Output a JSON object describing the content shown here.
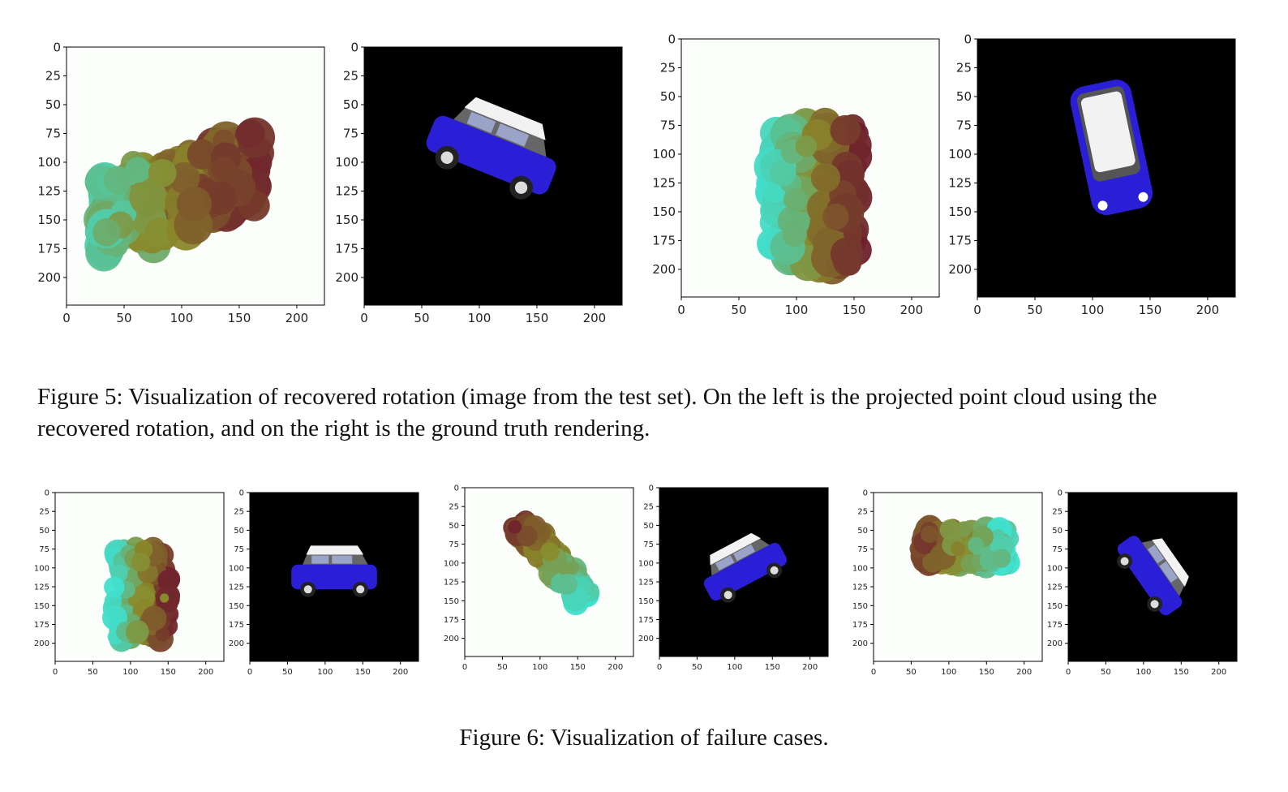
{
  "figure5": {
    "caption": "Figure 5: Visualization of recovered rotation (image from the test set). On the left is the projected point cloud using the recovered rotation, and on the right is the ground truth rendering."
  },
  "figure6": {
    "caption": "Figure 6: Visualization of failure cases."
  },
  "axes": {
    "y_ticks": [
      "0",
      "25",
      "50",
      "75",
      "100",
      "125",
      "150",
      "175",
      "200"
    ],
    "x_ticks": [
      "0",
      "50",
      "100",
      "150",
      "200"
    ]
  },
  "colors": {
    "cloud_cyan": "#3fe0cf",
    "cloud_olive": "#8a8a2a",
    "cloud_maroon": "#6e1d2c",
    "car_body": "#2a1fd6",
    "car_roof": "#f2f2f2",
    "render_bg": "#000000"
  },
  "panels": [
    {
      "kind": "cloud",
      "figure": "5",
      "orientation": "diagonal-left"
    },
    {
      "kind": "render",
      "figure": "5",
      "view": "three-quarter-left"
    },
    {
      "kind": "cloud",
      "figure": "5",
      "orientation": "vertical"
    },
    {
      "kind": "render",
      "figure": "5",
      "view": "top-down"
    },
    {
      "kind": "cloud",
      "figure": "6",
      "orientation": "vertical"
    },
    {
      "kind": "render",
      "figure": "6",
      "view": "side"
    },
    {
      "kind": "cloud",
      "figure": "6",
      "orientation": "diagonal-right"
    },
    {
      "kind": "render",
      "figure": "6",
      "view": "three-quarter-right"
    },
    {
      "kind": "cloud",
      "figure": "6",
      "orientation": "horizontal"
    },
    {
      "kind": "render",
      "figure": "6",
      "view": "front-top"
    }
  ]
}
